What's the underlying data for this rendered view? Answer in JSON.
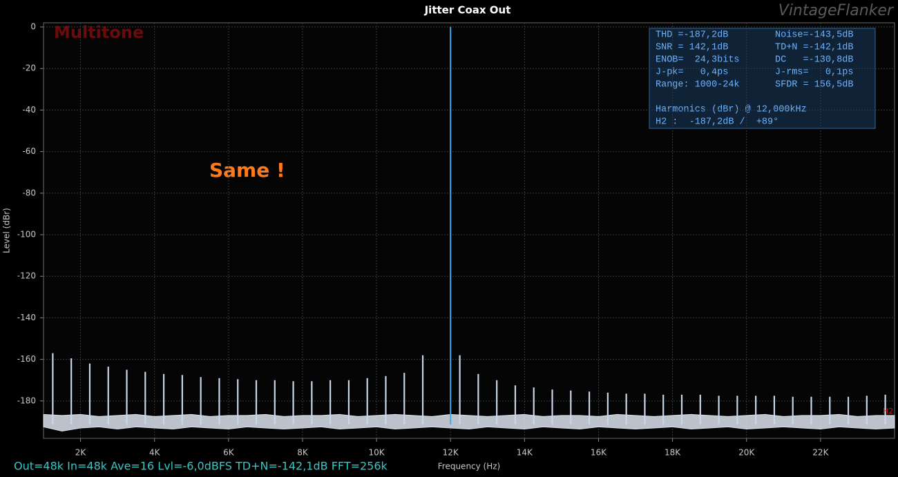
{
  "chart_data": {
    "type": "spectrum",
    "title": "Jitter Coax Out",
    "watermark": "VintageFlanker",
    "xlabel": "Frequency (Hz)",
    "ylabel": "Level (dBr)",
    "legend_text": "Multitone",
    "annotation": "Same !",
    "marker_label": "H2",
    "status": "Out=48k In=48k Ave=16 Lvl=-6,0dBFS TD+N=-142,1dB FFT=256k",
    "stats": [
      [
        "THD =-187,2dB",
        "Noise=-143,5dB"
      ],
      [
        "SNR = 142,1dB",
        "TD+N =-142,1dB"
      ],
      [
        "ENOB=  24,3bits",
        "DC   =-130,8dB"
      ],
      [
        "J-pk=   0,4ps",
        "J-rms=   0,1ps"
      ],
      [
        "Range: 1000-24k",
        "SFDR = 156,5dB"
      ]
    ],
    "harmonics": [
      "Harmonics (dBr) @ 12,000kHz",
      "H2 :  -187,2dB /  +89°"
    ],
    "xlim": [
      1000,
      24000
    ],
    "ylim": [
      -198,
      2
    ],
    "xticks": [
      {
        "value": 2000,
        "label": "2K"
      },
      {
        "value": 4000,
        "label": "4K"
      },
      {
        "value": 6000,
        "label": "6K"
      },
      {
        "value": 8000,
        "label": "8K"
      },
      {
        "value": 10000,
        "label": "10K"
      },
      {
        "value": 12000,
        "label": "12K"
      },
      {
        "value": 14000,
        "label": "14K"
      },
      {
        "value": 16000,
        "label": "16K"
      },
      {
        "value": 18000,
        "label": "18K"
      },
      {
        "value": 20000,
        "label": "20K"
      },
      {
        "value": 22000,
        "label": "22K"
      }
    ],
    "yticks": [
      0,
      -20,
      -40,
      -60,
      -80,
      -100,
      -120,
      -140,
      -160,
      -180
    ],
    "grid": true,
    "series": [
      {
        "color": "#3fa9f5",
        "x": [
          12000
        ],
        "values": [
          0
        ]
      },
      {
        "color": "#c9d6ea",
        "x": [
          1250,
          1750,
          2250,
          2750,
          3250,
          3750,
          4250,
          4750,
          5250,
          5750,
          6250,
          6750,
          7250,
          7750,
          8250,
          8750,
          9250,
          9750,
          10250,
          10750,
          11250,
          12250,
          12750,
          13250,
          13750,
          14250,
          14750,
          15250,
          15750,
          16250,
          16750,
          17250,
          17750,
          18250,
          18750,
          19250,
          19750,
          20250,
          20750,
          21250,
          21750,
          22250,
          22750,
          23250,
          23750
        ],
        "values": [
          -157,
          -159.5,
          -162,
          -163.5,
          -165,
          -166,
          -167,
          -167.5,
          -168.5,
          -169,
          -169.5,
          -170,
          -170,
          -170.5,
          -170.5,
          -170,
          -170,
          -169,
          -168,
          -166.5,
          -158,
          -158,
          -167,
          -170,
          -172.5,
          -173.5,
          -174.5,
          -175,
          -175.5,
          -176,
          -176.5,
          -176.5,
          -177,
          -177,
          -177,
          -177.5,
          -177.5,
          -177.5,
          -177.5,
          -178,
          -178,
          -178,
          -178,
          -177.5,
          -177
        ]
      }
    ],
    "noise": {
      "color": "#dde3f0",
      "x": [
        1000,
        1500,
        2000,
        2500,
        3000,
        3500,
        4000,
        4500,
        5000,
        5500,
        6000,
        6500,
        7000,
        7500,
        8000,
        8500,
        9000,
        9500,
        10000,
        10500,
        11000,
        11500,
        12000,
        12500,
        13000,
        13500,
        14000,
        14500,
        15000,
        15500,
        16000,
        16500,
        17000,
        17500,
        18000,
        18500,
        19000,
        19500,
        20000,
        20500,
        21000,
        21500,
        22000,
        22500,
        23000,
        23500,
        24000
      ],
      "upper": [
        -186.5,
        -187,
        -186.5,
        -187.5,
        -187,
        -186.5,
        -187.5,
        -187,
        -186.5,
        -187.5,
        -187,
        -187,
        -186.5,
        -187.5,
        -187,
        -187,
        -186.5,
        -187.5,
        -187,
        -186.5,
        -187,
        -187.5,
        -186.5,
        -187,
        -187.5,
        -187,
        -186.5,
        -187.5,
        -187,
        -187,
        -187.5,
        -186.5,
        -187,
        -187.5,
        -187,
        -186.5,
        -187,
        -187.5,
        -187,
        -186.5,
        -187.5,
        -187,
        -187,
        -186.5,
        -187.5,
        -187,
        -187
      ],
      "lower": [
        -192.5,
        -194.5,
        -193,
        -192.5,
        -193.5,
        -192.5,
        -193,
        -193.5,
        -192.5,
        -193,
        -193.5,
        -192.5,
        -193,
        -193.5,
        -193,
        -192.5,
        -193.5,
        -193,
        -192.5,
        -193.5,
        -193,
        -192.5,
        -193,
        -193.5,
        -192.5,
        -193,
        -193.5,
        -192.5,
        -193,
        -193.5,
        -192.5,
        -193,
        -193.5,
        -193,
        -192.5,
        -193.5,
        -193,
        -192.5,
        -193.5,
        -193,
        -192.5,
        -193,
        -193.5,
        -192.5,
        -193,
        -193.5,
        -193
      ]
    }
  }
}
